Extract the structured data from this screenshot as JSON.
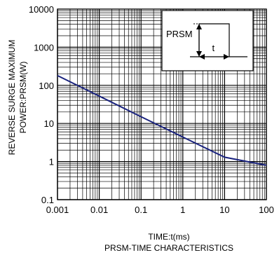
{
  "chart_data": {
    "type": "line",
    "title": "PRSM-TIME CHARACTERISTICS",
    "xlabel": "TIME:t(ms)",
    "ylabel_lines": [
      "REVERSE  SURGE MAXIMUM",
      "POWER:PRSM(W)"
    ],
    "x_scale": "log",
    "y_scale": "log",
    "xlim": [
      0.001,
      100
    ],
    "ylim": [
      0.1,
      10000
    ],
    "x_ticks": [
      "0.001",
      "0.01",
      "0.1",
      "1",
      "10",
      "100"
    ],
    "y_ticks": [
      "0.1",
      "1",
      "10",
      "100",
      "1000",
      "10000"
    ],
    "grid": true,
    "series": [
      {
        "color": "#1a237e",
        "x": [
          0.001,
          0.01,
          0.1,
          1,
          10,
          100
        ],
        "y": [
          180,
          52,
          15,
          4.4,
          1.3,
          0.8
        ]
      }
    ],
    "inset": {
      "label_power": "PRSM",
      "label_time": "t"
    }
  }
}
